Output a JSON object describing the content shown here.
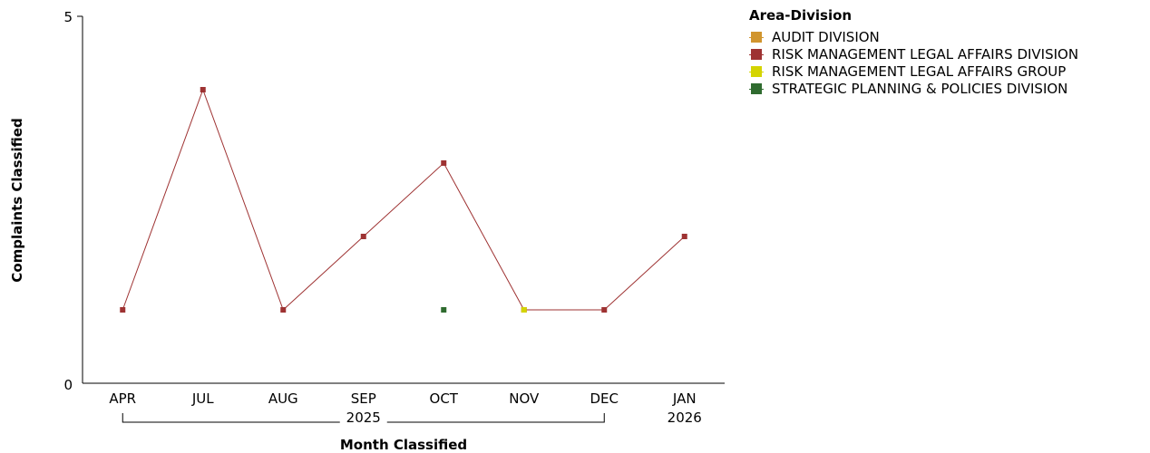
{
  "chart_data": {
    "type": "line",
    "xlabel": "Month Classified",
    "ylabel": "Complaints Classified",
    "ylim": [
      0,
      5
    ],
    "yticks": [
      "0",
      "5"
    ],
    "categories": [
      "APR",
      "JUL",
      "AUG",
      "SEP",
      "OCT",
      "NOV",
      "DEC",
      "JAN"
    ],
    "year_groups": [
      {
        "label": "2025",
        "from": 0,
        "to": 6
      },
      {
        "label": "2026",
        "from": 7,
        "to": 7
      }
    ],
    "legend_title": "Area-Division",
    "legend_position": "top-right",
    "grid": false,
    "series": [
      {
        "name": "AUDIT DIVISION",
        "color": "#d1952e",
        "values": [
          null,
          null,
          null,
          null,
          null,
          null,
          null,
          null
        ]
      },
      {
        "name": "RISK MANAGEMENT LEGAL AFFAIRS DIVISION",
        "color": "#9e3232",
        "values": [
          1,
          4,
          1,
          2,
          3,
          1,
          1,
          2
        ]
      },
      {
        "name": "RISK MANAGEMENT LEGAL AFFAIRS GROUP",
        "color": "#d4d400",
        "values": [
          null,
          null,
          null,
          null,
          null,
          1,
          null,
          null
        ]
      },
      {
        "name": "STRATEGIC PLANNING & POLICIES DIVISION",
        "color": "#2f6b2f",
        "values": [
          null,
          null,
          null,
          null,
          1,
          null,
          null,
          null
        ]
      }
    ]
  }
}
